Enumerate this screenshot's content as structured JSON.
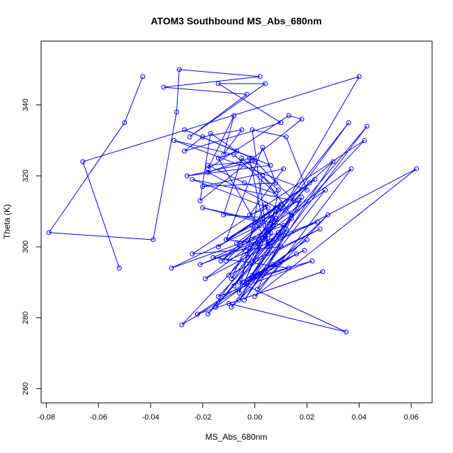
{
  "chart_data": {
    "type": "line",
    "title": "ATOM3 Southbound MS_Abs_680nm",
    "xlabel": "MS_Abs_680nm",
    "ylabel": "Theta (K)",
    "xlim": [
      -0.082,
      0.068
    ],
    "ylim": [
      256,
      358
    ],
    "x_ticks": [
      -0.08,
      -0.06,
      -0.04,
      -0.02,
      0.0,
      0.02,
      0.04,
      0.06
    ],
    "x_tick_labels": [
      "-0.08",
      "-0.06",
      "-0.04",
      "-0.02",
      "0.00",
      "0.02",
      "0.04",
      "0.06"
    ],
    "y_ticks": [
      260,
      280,
      300,
      320,
      340
    ],
    "y_tick_labels": [
      "260",
      "280",
      "300",
      "320",
      "340"
    ],
    "grid": false,
    "series_color": "#0000ff",
    "series": [
      {
        "x": [
          -0.043,
          -0.05,
          -0.079,
          -0.039,
          -0.03,
          -0.029,
          0.002,
          -0.035,
          -0.003,
          -0.025,
          0.004,
          -0.014,
          0.01,
          -0.027,
          -0.02,
          -0.005,
          -0.012,
          -0.008,
          -0.018,
          0.013,
          0.018,
          -0.021,
          -0.017,
          -0.007,
          -0.014,
          0.005,
          -0.001,
          0.012,
          0.02,
          -0.031,
          -0.008,
          0.008,
          -0.004,
          -0.018,
          0.0,
          -0.026,
          0.006,
          -0.027,
          -0.001,
          0.015,
          -0.024,
          0.005,
          -0.002,
          0.011,
          -0.02,
          0.008,
          0.003,
          -0.011,
          0.017,
          -0.001,
          0.023,
          -0.014,
          0.01,
          -0.006,
          0.003,
          0.014,
          -0.018,
          -0.002,
          0.005,
          0.009,
          -0.005,
          -0.012,
          0.008,
          0.001,
          -0.011,
          0.01,
          -0.003,
          0.021,
          -0.009,
          0.004,
          0.007,
          -0.02,
          0.011,
          -0.007,
          0.002,
          -0.032,
          0.006,
          -0.016,
          0.013,
          -0.004,
          0.008,
          -0.011,
          0.024,
          -0.021,
          0.009,
          -0.003,
          0.016,
          -0.028,
          0.004,
          -0.008,
          0.012,
          -0.001,
          0.019,
          -0.006,
          0.035,
          -0.01,
          0.026,
          -0.022,
          0.007,
          -0.002,
          0.022,
          -0.014,
          0.042,
          -0.024,
          0.01,
          -0.004,
          0.03,
          -0.013,
          0.037,
          0.0,
          0.062,
          -0.019,
          0.027,
          -0.006,
          0.018,
          0.001,
          0.028,
          -0.009,
          0.043,
          -0.015,
          0.02,
          -0.003,
          0.014,
          -0.018,
          0.036,
          -0.01,
          0.025,
          -0.001,
          0.04,
          -0.066,
          -0.052
        ],
        "y": [
          348,
          335,
          304,
          302,
          338,
          350,
          348,
          345,
          343,
          331,
          346,
          346,
          335,
          327,
          331,
          333,
          326,
          337,
          322,
          337,
          336,
          313,
          332,
          327,
          325,
          301,
          333,
          331,
          316,
          330,
          326,
          315,
          318,
          323,
          324,
          320,
          323,
          333,
          325,
          313,
          319,
          311,
          309,
          322,
          317,
          318,
          328,
          302,
          313,
          306,
          319,
          300,
          312,
          287,
          320,
          309,
          321,
          325,
          300,
          316,
          325,
          309,
          308,
          301,
          302,
          312,
          298,
          318,
          291,
          312,
          306,
          311,
          306,
          301,
          306,
          294,
          304,
          297,
          294,
          290,
          311,
          296,
          307,
          295,
          304,
          290,
          298,
          278,
          303,
          289,
          305,
          292,
          299,
          290,
          276,
          284,
          293,
          281,
          295,
          291,
          296,
          286,
          330,
          298,
          300,
          285,
          324,
          296,
          322,
          286,
          322,
          291,
          316,
          285,
          314,
          288,
          309,
          283,
          334,
          283,
          302,
          290,
          308,
          281,
          335,
          292,
          305,
          296,
          348,
          324,
          294
        ]
      }
    ]
  }
}
